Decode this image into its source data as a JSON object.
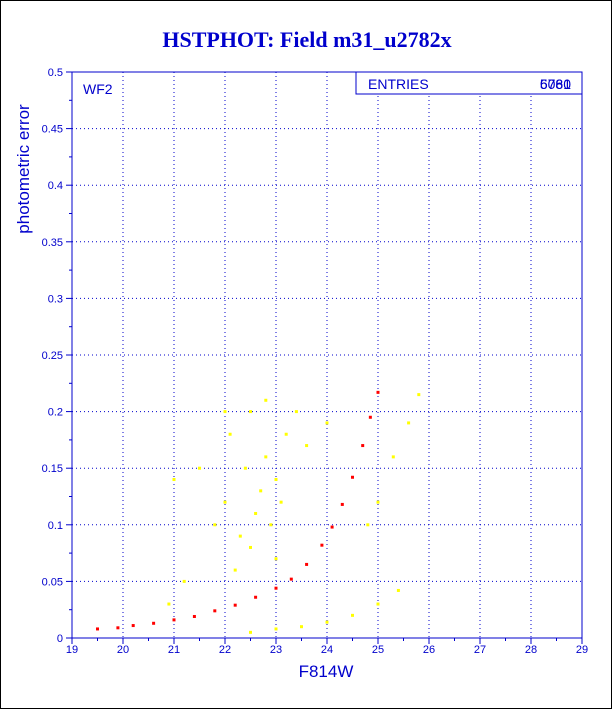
{
  "chart_data": {
    "type": "scatter",
    "title": "HSTPHOT: Field m31_u2782x",
    "xlabel": "F814W",
    "ylabel": "photometric error",
    "xlim": [
      19,
      29
    ],
    "ylim": [
      0,
      0.5
    ],
    "x_ticks": [
      "19",
      "20",
      "21",
      "22",
      "23",
      "24",
      "25",
      "26",
      "27",
      "28",
      "29"
    ],
    "y_ticks": [
      "0",
      "0.05",
      "0.1",
      "0.15",
      "0.2",
      "0.25",
      "0.3",
      "0.35",
      "0.4",
      "0.45",
      "0.5"
    ],
    "grid": true,
    "panel_label": "WF2",
    "stats_box": {
      "label": "ENTRIES",
      "values": [
        "6081",
        "5760"
      ],
      "placement": "top-right"
    },
    "colors": {
      "title": "#0000cc",
      "axis": "#0000cc",
      "grid": "#0000cc",
      "series_red": "#ff0000",
      "series_yellow": "#ffff00"
    },
    "series": [
      {
        "values": [
          [
            19.5,
            0.008
          ],
          [
            19.9,
            0.009
          ],
          [
            20.2,
            0.011
          ],
          [
            20.6,
            0.013
          ],
          [
            21.0,
            0.016
          ],
          [
            21.4,
            0.019
          ],
          [
            21.8,
            0.024
          ],
          [
            22.2,
            0.029
          ],
          [
            22.6,
            0.036
          ],
          [
            23.0,
            0.044
          ],
          [
            23.3,
            0.052
          ],
          [
            23.6,
            0.065
          ],
          [
            23.9,
            0.082
          ],
          [
            24.1,
            0.098
          ],
          [
            24.3,
            0.118
          ],
          [
            24.5,
            0.142
          ],
          [
            24.7,
            0.17
          ],
          [
            24.85,
            0.195
          ],
          [
            25.0,
            0.217
          ]
        ]
      },
      {
        "values": [
          [
            21.0,
            0.14
          ],
          [
            21.5,
            0.15
          ],
          [
            21.8,
            0.1
          ],
          [
            22.0,
            0.12
          ],
          [
            22.1,
            0.18
          ],
          [
            22.3,
            0.09
          ],
          [
            22.4,
            0.15
          ],
          [
            22.5,
            0.2
          ],
          [
            22.6,
            0.11
          ],
          [
            22.7,
            0.13
          ],
          [
            22.8,
            0.16
          ],
          [
            22.9,
            0.1
          ],
          [
            23.0,
            0.14
          ],
          [
            23.1,
            0.12
          ],
          [
            23.2,
            0.18
          ],
          [
            23.4,
            0.2
          ],
          [
            23.0,
            0.07
          ],
          [
            22.5,
            0.08
          ],
          [
            22.2,
            0.06
          ],
          [
            21.2,
            0.05
          ],
          [
            20.9,
            0.03
          ],
          [
            24.0,
            0.19
          ],
          [
            23.6,
            0.17
          ],
          [
            22.0,
            0.2
          ],
          [
            22.8,
            0.21
          ],
          [
            22.5,
            0.005
          ],
          [
            23.0,
            0.008
          ],
          [
            23.5,
            0.01
          ],
          [
            24.0,
            0.014
          ],
          [
            24.5,
            0.02
          ],
          [
            25.0,
            0.03
          ],
          [
            25.4,
            0.042
          ],
          [
            25.0,
            0.12
          ],
          [
            25.3,
            0.16
          ],
          [
            25.6,
            0.19
          ],
          [
            25.8,
            0.215
          ],
          [
            24.8,
            0.1
          ]
        ]
      }
    ]
  }
}
